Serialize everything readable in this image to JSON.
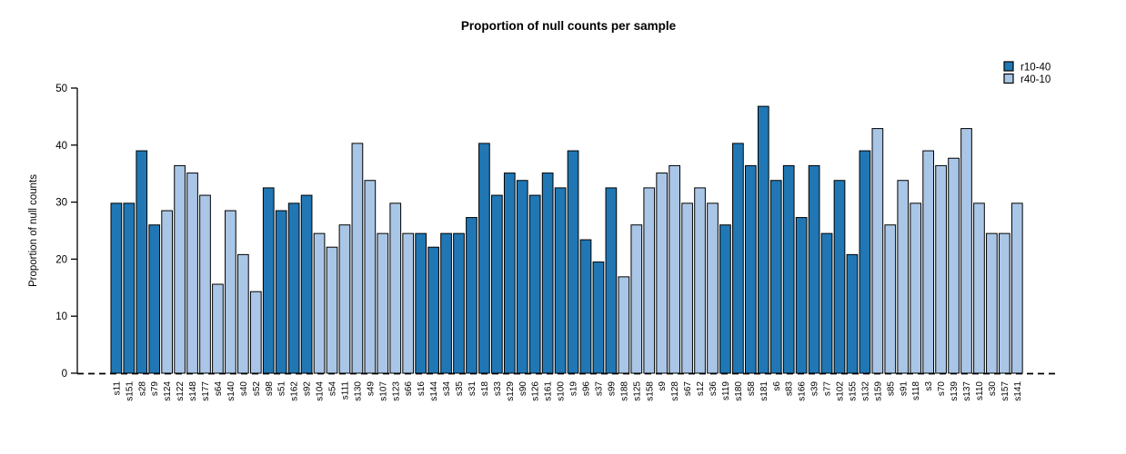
{
  "page": {
    "background": "#ffffff"
  },
  "chart_data": {
    "type": "bar",
    "title": "Proportion of null counts per sample",
    "xlabel": "",
    "ylabel": "Proportion of null counts",
    "ylim": [
      0,
      50
    ],
    "yticks": [
      0,
      10,
      20,
      30,
      40,
      50
    ],
    "grid": false,
    "bar_edge_color": "#000000",
    "baseline": {
      "value": 0,
      "style": "dashed",
      "color": "#000000"
    },
    "legend_position": "top-right",
    "series": [
      {
        "name": "r10-40",
        "color": "#2077b4"
      },
      {
        "name": "r40-10",
        "color": "#a9c6e7"
      }
    ],
    "categories": [
      "s11",
      "s151",
      "s28",
      "s79",
      "s124",
      "s122",
      "s148",
      "s177",
      "s64",
      "s140",
      "s40",
      "s52",
      "s98",
      "s51",
      "s162",
      "s92",
      "s104",
      "s54",
      "s111",
      "s130",
      "s49",
      "s107",
      "s123",
      "s66",
      "s16",
      "s144",
      "s34",
      "s35",
      "s31",
      "s18",
      "s33",
      "s129",
      "s90",
      "s126",
      "s161",
      "s100",
      "s19",
      "s96",
      "s37",
      "s99",
      "s188",
      "s125",
      "s158",
      "s9",
      "s128",
      "s67",
      "s12",
      "s36",
      "s119",
      "s180",
      "s58",
      "s181",
      "s6",
      "s83",
      "s166",
      "s39",
      "s77",
      "s102",
      "s155",
      "s132",
      "s159",
      "s85",
      "s91",
      "s118",
      "s3",
      "s70",
      "s139",
      "s137",
      "s110",
      "s30",
      "s157",
      "s141"
    ],
    "bar_series": [
      0,
      0,
      0,
      0,
      1,
      1,
      1,
      1,
      1,
      1,
      1,
      1,
      0,
      0,
      0,
      0,
      1,
      1,
      1,
      1,
      1,
      1,
      1,
      1,
      0,
      0,
      0,
      0,
      0,
      0,
      0,
      0,
      0,
      0,
      0,
      0,
      0,
      0,
      0,
      0,
      1,
      1,
      1,
      1,
      1,
      1,
      1,
      1,
      0,
      0,
      0,
      0,
      0,
      0,
      0,
      0,
      0,
      0,
      0,
      0,
      1,
      1,
      1,
      1,
      1,
      1,
      1,
      1,
      1,
      1,
      1,
      1
    ],
    "values": [
      29.8,
      29.8,
      39.0,
      26.0,
      28.5,
      36.4,
      35.1,
      31.2,
      15.6,
      28.5,
      20.8,
      14.3,
      32.5,
      28.5,
      29.8,
      31.2,
      24.5,
      22.1,
      26.0,
      40.3,
      33.8,
      24.5,
      29.8,
      24.5,
      24.5,
      22.1,
      24.5,
      24.5,
      27.3,
      40.3,
      31.2,
      35.1,
      33.8,
      31.2,
      35.1,
      32.5,
      39.0,
      23.4,
      19.5,
      32.5,
      16.9,
      26.0,
      32.5,
      35.1,
      36.4,
      29.8,
      32.5,
      29.8,
      26.0,
      40.3,
      36.4,
      46.8,
      33.8,
      36.4,
      27.3,
      36.4,
      24.5,
      33.8,
      20.8,
      39.0,
      42.9,
      26.0,
      33.8,
      29.8,
      39.0,
      36.4,
      37.7,
      42.9,
      29.8,
      24.5,
      24.5,
      29.8
    ]
  }
}
